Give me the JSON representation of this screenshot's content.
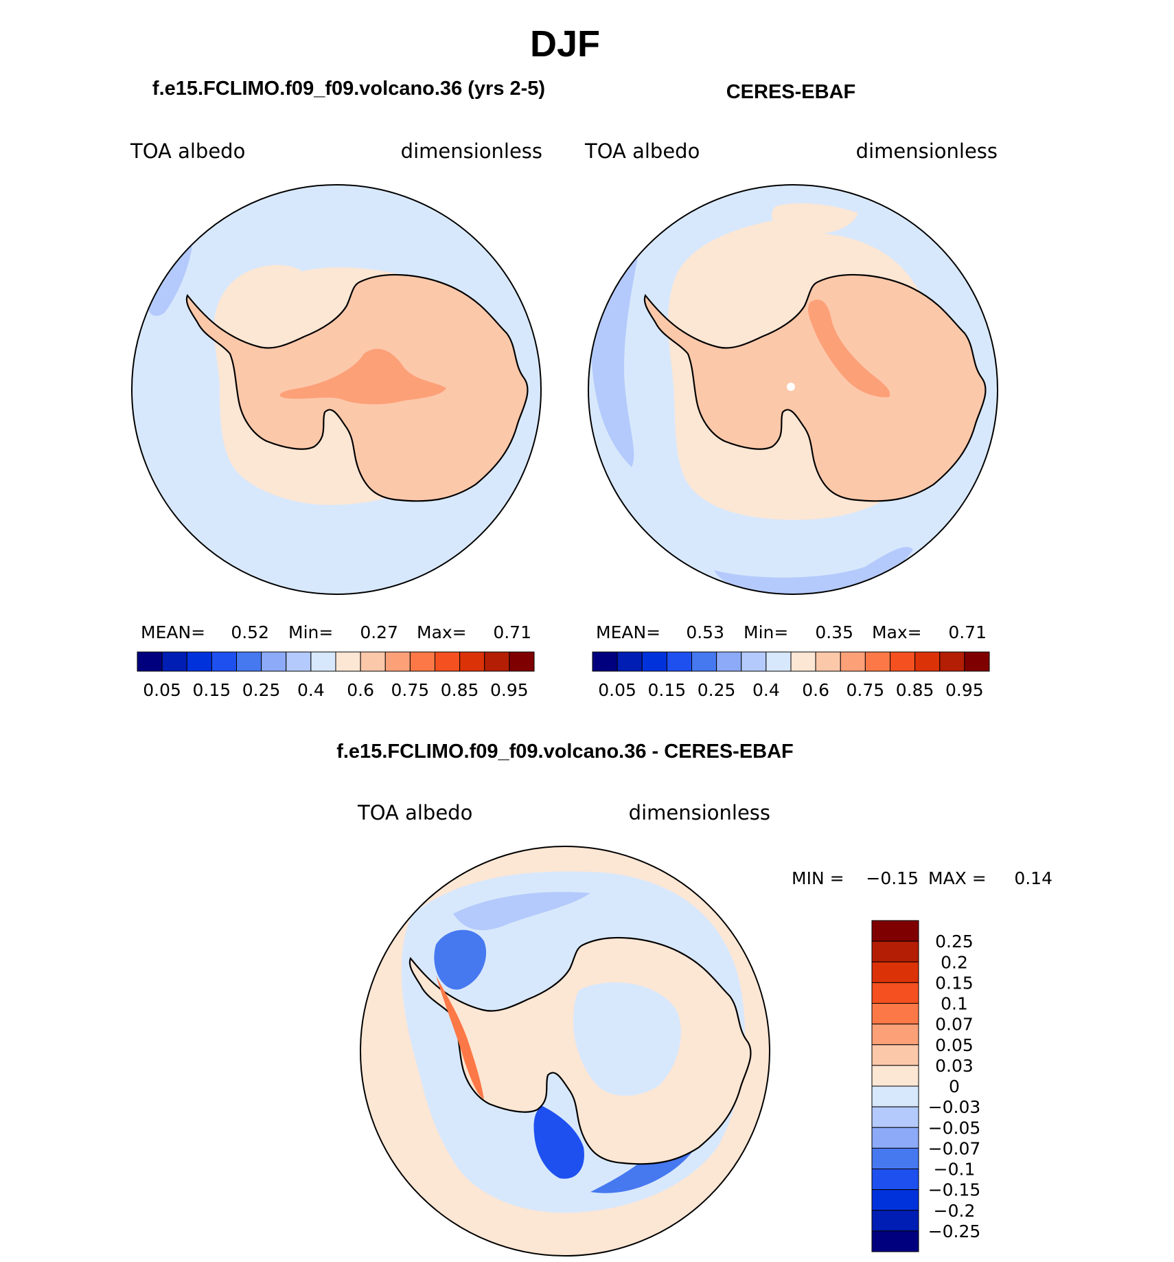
{
  "page_title": "DJF",
  "panels": [
    {
      "header": "f.e15.FCLIMO.f09_f09.volcano.36 (yrs 2-5)",
      "left_label": "TOA albedo",
      "right_label": "dimensionless",
      "stats": {
        "mean_label": "MEAN=",
        "mean": "0.52",
        "min_label": "Min=",
        "min": "0.27",
        "max_label": "Max=",
        "max": "0.71"
      }
    },
    {
      "header": "CERES-EBAF",
      "left_label": "TOA albedo",
      "right_label": "dimensionless",
      "stats": {
        "mean_label": "MEAN=",
        "mean": "0.53",
        "min_label": "Min=",
        "min": "0.35",
        "max_label": "Max=",
        "max": "0.71"
      }
    }
  ],
  "diff_panel": {
    "header": "f.e15.FCLIMO.f09_f09.volcano.36 - CERES-EBAF",
    "left_label": "TOA albedo",
    "right_label": "dimensionless",
    "min_label": "MIN =",
    "min": "−0.15",
    "max_label": "MAX =",
    "max": "0.14"
  },
  "colorbar_main": {
    "colors": [
      "#00007f",
      "#001eb4",
      "#0032dc",
      "#1e50f0",
      "#4678f0",
      "#8caaf8",
      "#b4cafc",
      "#d8e8fc",
      "#fce6d4",
      "#fcc8aa",
      "#fca078",
      "#fc7846",
      "#f45020",
      "#dc3208",
      "#b41e04",
      "#7f0000"
    ],
    "tick_labels": [
      "0.05",
      "0.15",
      "0.25",
      "0.4",
      "0.6",
      "0.75",
      "0.85",
      "0.95"
    ]
  },
  "colorbar_diff": {
    "colors_top_to_bottom": [
      "#7f0000",
      "#b41e04",
      "#dc3208",
      "#f45020",
      "#fc7846",
      "#fca078",
      "#fcc8aa",
      "#fce6d4",
      "#d8e8fc",
      "#b4cafc",
      "#8caaf8",
      "#4678f0",
      "#1e50f0",
      "#0032dc",
      "#001eb4",
      "#00007f"
    ],
    "tick_labels": [
      "0.25",
      "0.2",
      "0.15",
      "0.1",
      "0.07",
      "0.05",
      "0.03",
      "0",
      "−0.03",
      "−0.05",
      "−0.07",
      "−0.1",
      "−0.15",
      "−0.2",
      "−0.25"
    ]
  },
  "fills": {
    "ocean": "#d8e8fc",
    "ocean_dark": "#b4cafc",
    "ice_light": "#fce6d4",
    "ice": "#fcc8aa",
    "ice_high": "#fca078",
    "diff_bg": "#fce6d4",
    "diff_blue": "#4678f0",
    "diff_blue_dark": "#1e50f0",
    "diff_red": "#fc7846"
  }
}
